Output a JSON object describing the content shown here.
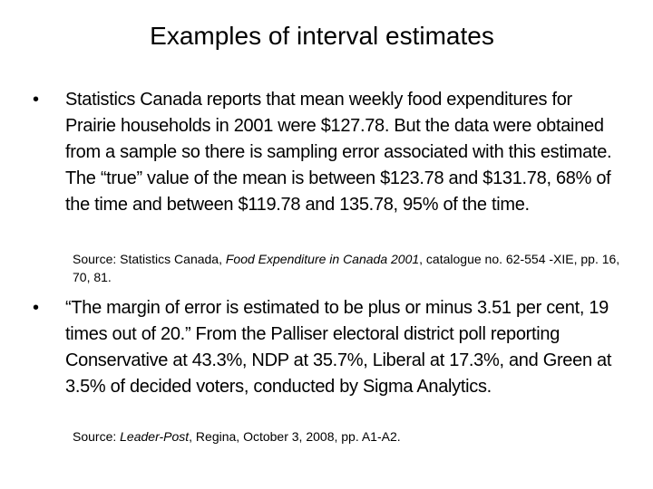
{
  "title": "Examples of interval estimates",
  "bullets": [
    {
      "text": "Statistics Canada reports that mean weekly food expenditures for Prairie households in 2001 were $127.78.  But the data were obtained from a sample so there is sampling error associated with this estimate.  The “true” value of the mean is between $123.78 and $131.78, 68% of the time and between $119.78 and 135.78, 95% of the time.",
      "source": {
        "before": "Source: Statistics Canada, ",
        "italic": "Food Expenditure in Canada 2001",
        "after": ", catalogue no. 62-554 -XIE, pp. 16, 70, 81."
      }
    },
    {
      "text": "“The margin of error is estimated to be plus or minus 3.51 per cent, 19 times out of 20.”   From the Palliser electoral district poll reporting Conservative at 43.3%, NDP at 35.7%, Liberal at 17.3%, and Green at 3.5% of decided voters, conducted by Sigma Analytics.",
      "source": {
        "before": "Source: ",
        "italic": "Leader-Post",
        "after": ", Regina, October 3, 2008, pp. A1-A2."
      }
    }
  ]
}
